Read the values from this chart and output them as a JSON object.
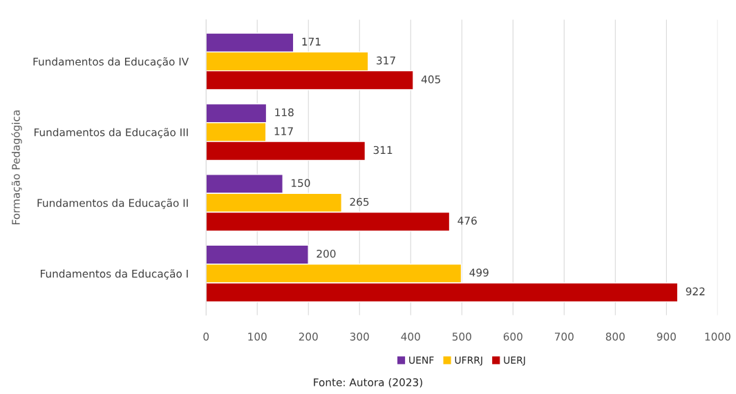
{
  "chart_data": {
    "type": "bar",
    "orientation": "horizontal",
    "categories": [
      "Fundamentos da Educação IV",
      "Fundamentos da Educação III",
      "Fundamentos da Educação II",
      "Fundamentos da Educação I"
    ],
    "series": [
      {
        "name": "UENF",
        "color": "#7030a0",
        "values": [
          171,
          118,
          150,
          200
        ]
      },
      {
        "name": "UFRRJ",
        "color": "#ffc000",
        "values": [
          317,
          117,
          265,
          499
        ]
      },
      {
        "name": "UERJ",
        "color": "#c00000",
        "values": [
          405,
          311,
          476,
          922
        ]
      }
    ],
    "ylabel": "Formação Pedagógica",
    "xlim": [
      0,
      1000
    ],
    "xticks": [
      0,
      100,
      200,
      300,
      400,
      500,
      600,
      700,
      800,
      900,
      1000
    ],
    "grid": "x",
    "legend": "bottom",
    "data_labels": true,
    "annotations": [
      "Fonte: Autora (2023)"
    ]
  }
}
